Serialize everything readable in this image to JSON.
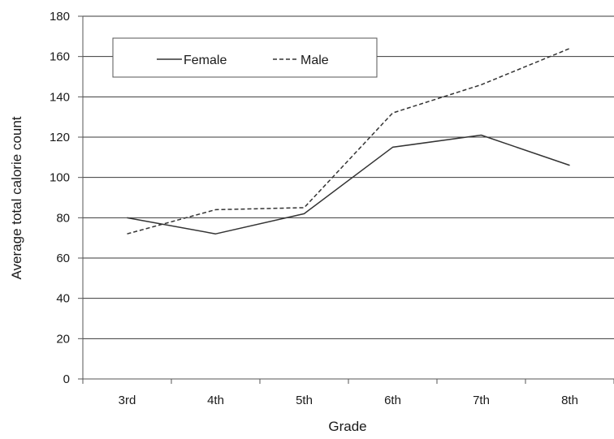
{
  "chart_data": {
    "type": "line",
    "categories": [
      "3rd",
      "4th",
      "5th",
      "6th",
      "7th",
      "8th"
    ],
    "series": [
      {
        "name": "Female",
        "values": [
          80,
          72,
          82,
          115,
          121,
          106
        ],
        "dash": "solid"
      },
      {
        "name": "Male",
        "values": [
          72,
          84,
          85,
          132,
          146,
          164
        ],
        "dash": "dashed"
      }
    ],
    "xlabel": "Grade",
    "ylabel": "Average total calorie count",
    "ylim": [
      0,
      180
    ],
    "yticks": [
      "0",
      "20",
      "40",
      "60",
      "80",
      "100",
      "120",
      "140",
      "160",
      "180"
    ],
    "grid": true,
    "legend_position": "top-left",
    "colors": {
      "line": "#333333",
      "grid": "#3a3a3a",
      "axis": "#555555"
    }
  }
}
